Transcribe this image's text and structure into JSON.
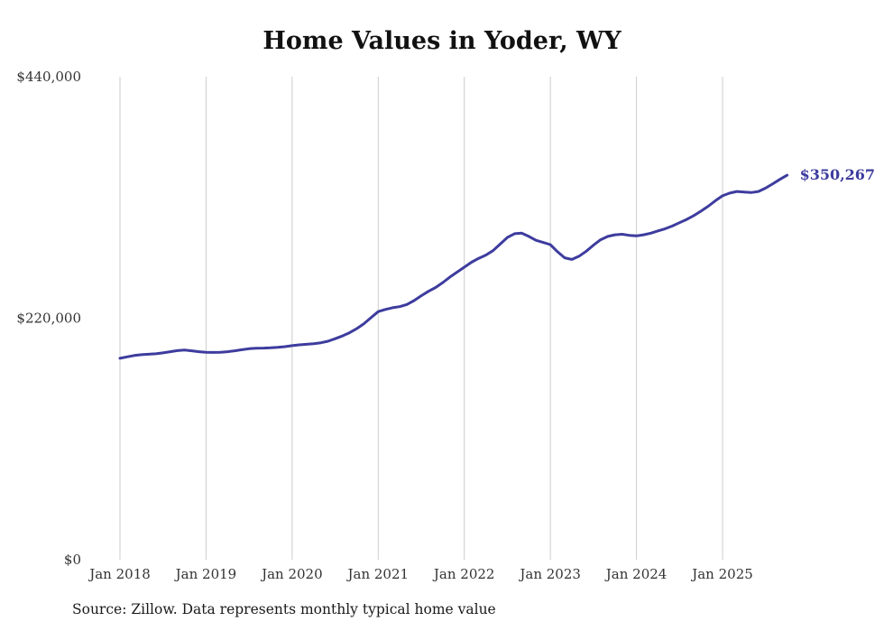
{
  "title": "Home Values in Yoder, WY",
  "source_note": "Source: Zillow. Data represents monthly typical home value",
  "colors": {
    "line": "#3d3c9e",
    "grid": "#cccccc",
    "axis_text": "#333333",
    "title_text": "#111111",
    "background": "#ffffff"
  },
  "chart_data": {
    "type": "line",
    "title": "Home Values in Yoder, WY",
    "xlabel": "",
    "ylabel": "",
    "ylim": [
      0,
      440000
    ],
    "grid": "vertical-only",
    "legend": "none",
    "x_start_month": "Jan 2018",
    "x_end_month": "Oct 2025",
    "x_tick_labels": [
      "Jan 2018",
      "Jan 2019",
      "Jan 2020",
      "Jan 2021",
      "Jan 2022",
      "Jan 2023",
      "Jan 2024",
      "Jan 2025"
    ],
    "y_ticks": [
      {
        "value": 0,
        "label": "$0"
      },
      {
        "value": 220000,
        "label": "$220,000"
      },
      {
        "value": 440000,
        "label": "$440,000"
      }
    ],
    "end_label": "$350,267",
    "end_value": 350267,
    "series": [
      {
        "name": "Monthly typical home value",
        "values": [
          183500,
          184800,
          186000,
          186800,
          187200,
          187600,
          188400,
          189500,
          190500,
          191000,
          190300,
          189500,
          189000,
          188800,
          189000,
          189500,
          190300,
          191300,
          192200,
          192700,
          192800,
          193000,
          193400,
          194100,
          195000,
          195700,
          196200,
          196800,
          197600,
          199000,
          201300,
          203800,
          206800,
          210500,
          215000,
          220500,
          226000,
          228000,
          229500,
          230500,
          232500,
          236000,
          240500,
          244500,
          248000,
          252500,
          257500,
          262000,
          266500,
          271000,
          274500,
          277500,
          281500,
          287500,
          293500,
          297000,
          297500,
          294500,
          291000,
          289000,
          287000,
          280500,
          275000,
          273500,
          276500,
          281000,
          286500,
          291500,
          294500,
          296000,
          296500,
          295500,
          295000,
          296000,
          297500,
          299500,
          301500,
          304000,
          307000,
          310000,
          313500,
          317500,
          322000,
          327000,
          331500,
          334000,
          335500,
          335000,
          334500,
          335500,
          338500,
          342500,
          346500,
          350267
        ]
      }
    ]
  }
}
